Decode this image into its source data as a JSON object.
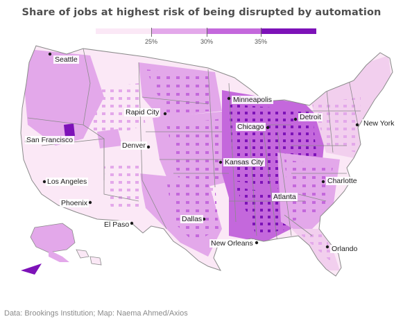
{
  "title": "Share of jobs at highest risk of being disrupted by automation",
  "legend": {
    "tick_labels": [
      "25%",
      "30%",
      "35%"
    ],
    "colors": [
      "#fbe8f6",
      "#e3a8ea",
      "#c468dc",
      "#7d12b8"
    ]
  },
  "cities": {
    "seattle": "Seattle",
    "rapid_city": "Rapid City",
    "minneapolis": "Minneapolis",
    "detroit": "Detroit",
    "new_york": "New York",
    "san_francisco": "San Francisco",
    "denver": "Denver",
    "chicago": "Chicago",
    "kansas_city": "Kansas City",
    "charlotte": "Charlotte",
    "los_angeles": "Los Angeles",
    "phoenix": "Phoenix",
    "atlanta": "Atlanta",
    "el_paso": "El Paso",
    "dallas": "Dallas",
    "new_orleans": "New Orleans",
    "orlando": "Orlando"
  },
  "source": "Data: Brookings Institution; Map: Naema Ahmed/Axios"
}
